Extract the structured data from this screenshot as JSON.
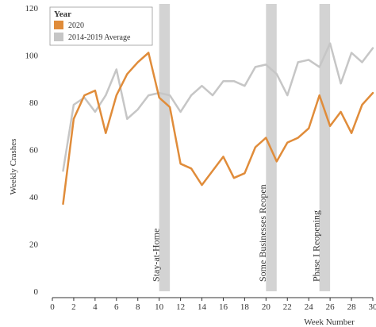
{
  "chart_data": {
    "type": "line",
    "title": "",
    "xlabel": "Week Number",
    "ylabel": "Weekly Crashes",
    "xlim": [
      0,
      30
    ],
    "ylim": [
      0,
      120
    ],
    "x_ticks": [
      0,
      2,
      4,
      6,
      8,
      10,
      12,
      14,
      16,
      18,
      20,
      22,
      24,
      26,
      28,
      30
    ],
    "y_ticks": [
      0,
      20,
      40,
      60,
      80,
      100,
      120
    ],
    "grid": false,
    "legend": {
      "title": "Year",
      "position": "top-left",
      "entries": [
        "2020",
        "2014-2019 Average"
      ]
    },
    "colors": {
      "2020": "#E08C3A",
      "2014-2019 Average": "#C6C6C6",
      "band": "#D3D3D3"
    },
    "series": [
      {
        "name": "2020",
        "x": [
          1,
          2,
          3,
          4,
          5,
          6,
          7,
          8,
          9,
          10,
          11,
          12,
          13,
          14,
          15,
          16,
          17,
          18,
          19,
          20,
          21,
          22,
          23,
          24,
          25,
          26,
          27,
          28,
          29,
          30
        ],
        "values": [
          37,
          73,
          83,
          85,
          67,
          83,
          92,
          97,
          101,
          82,
          78,
          54,
          52,
          45,
          51,
          57,
          48,
          50,
          61,
          65,
          55,
          63,
          65,
          69,
          83,
          70,
          76,
          67,
          79,
          84
        ]
      },
      {
        "name": "2014-2019 Average",
        "x": [
          1,
          2,
          3,
          4,
          5,
          6,
          7,
          8,
          9,
          10,
          11,
          12,
          13,
          14,
          15,
          16,
          17,
          18,
          19,
          20,
          21,
          22,
          23,
          24,
          25,
          26,
          27,
          28,
          29,
          30
        ],
        "values": [
          51,
          79,
          82,
          76,
          83,
          94,
          73,
          77,
          83,
          84,
          83,
          76,
          83,
          87,
          83,
          89,
          89,
          87,
          95,
          96,
          92,
          83,
          97,
          98,
          95,
          105,
          88,
          101,
          97,
          103
        ]
      }
    ],
    "annotations": [
      {
        "label": "Stay-at-Home",
        "x": 10.5
      },
      {
        "label": "Some Businesses Reopen",
        "x": 20.5
      },
      {
        "label": "Phase I Reopening",
        "x": 25.5
      }
    ]
  }
}
